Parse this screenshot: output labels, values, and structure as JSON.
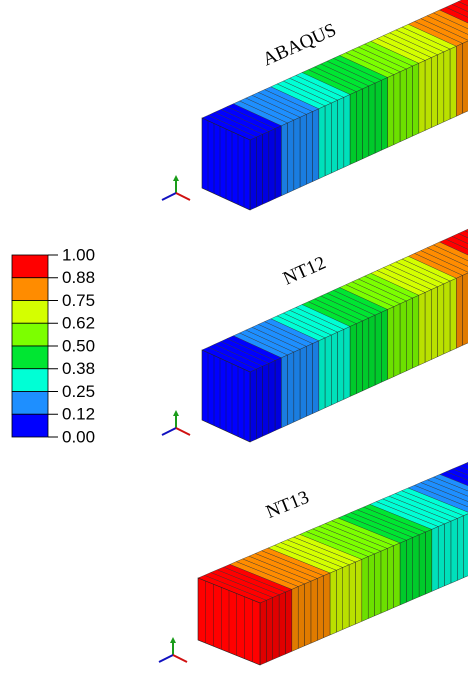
{
  "panels": [
    {
      "label": "ABAQUS"
    },
    {
      "label": "NT12"
    },
    {
      "label": "NT13"
    }
  ],
  "legend": {
    "labels": [
      "1.00",
      "0.88",
      "0.75",
      "0.62",
      "0.50",
      "0.38",
      "0.25",
      "0.12",
      "0.00"
    ],
    "colors": [
      "#ff0000",
      "#ff8c00",
      "#d4ff00",
      "#7cff00",
      "#00e632",
      "#00ffd5",
      "#1e8fff",
      "#0000ff"
    ]
  }
}
